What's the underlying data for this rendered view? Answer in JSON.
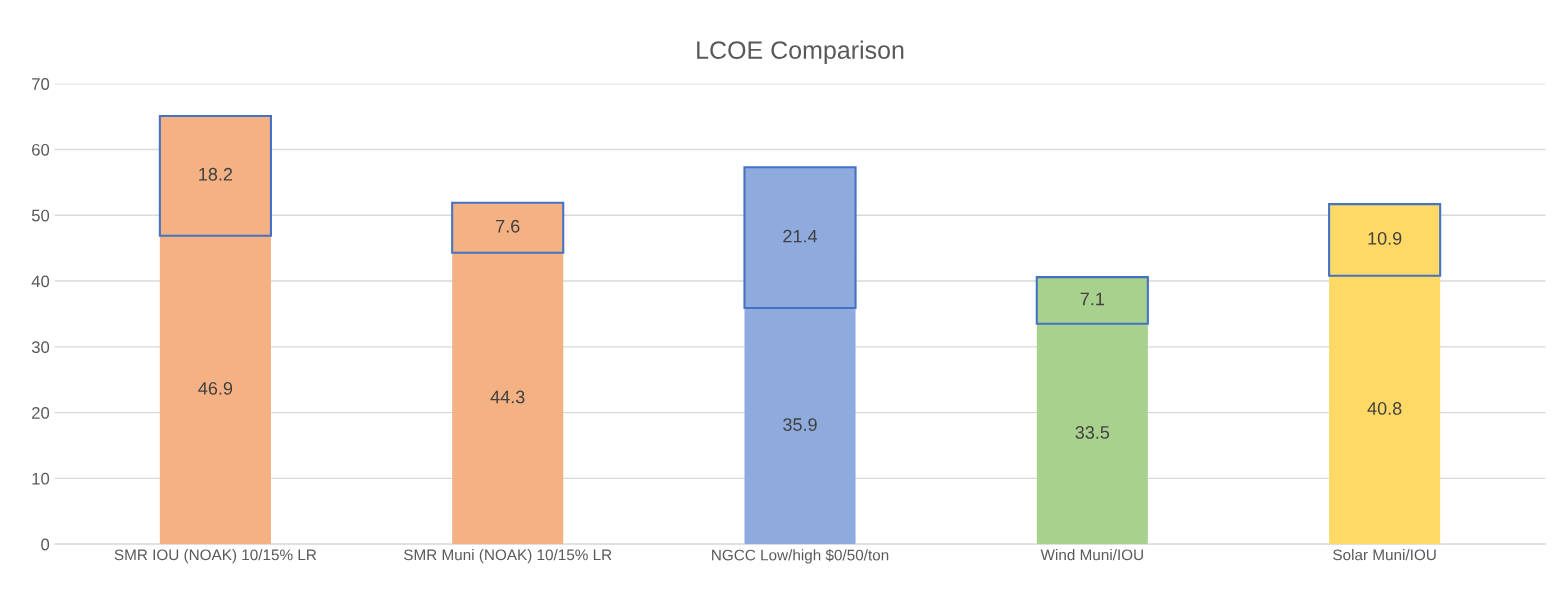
{
  "chart_data": {
    "type": "bar",
    "title": "LCOE Comparison",
    "stacked": true,
    "categories": [
      "SMR IOU (NOAK) 10/15% LR",
      "SMR Muni (NOAK) 10/15% LR",
      "NGCC Low/high $0/50/ton",
      "Wind Muni/IOU",
      "Solar Muni/IOU"
    ],
    "series": [
      {
        "colors": [
          "#f4b183",
          "#f4b183",
          "#8faadc",
          "#a9d18e",
          "#ffd966"
        ],
        "values": [
          46.9,
          44.3,
          35.9,
          33.5,
          40.8
        ]
      },
      {
        "colors": [
          "#f4b183",
          "#f4b183",
          "#8faadc",
          "#a9d18e",
          "#ffd966"
        ],
        "values": [
          18.2,
          7.6,
          21.4,
          7.1,
          10.9
        ]
      }
    ],
    "data_labels": true,
    "ylim": [
      0,
      70
    ],
    "yticks": [
      0,
      10,
      20,
      30,
      40,
      50,
      60,
      70
    ],
    "grid": "y"
  }
}
